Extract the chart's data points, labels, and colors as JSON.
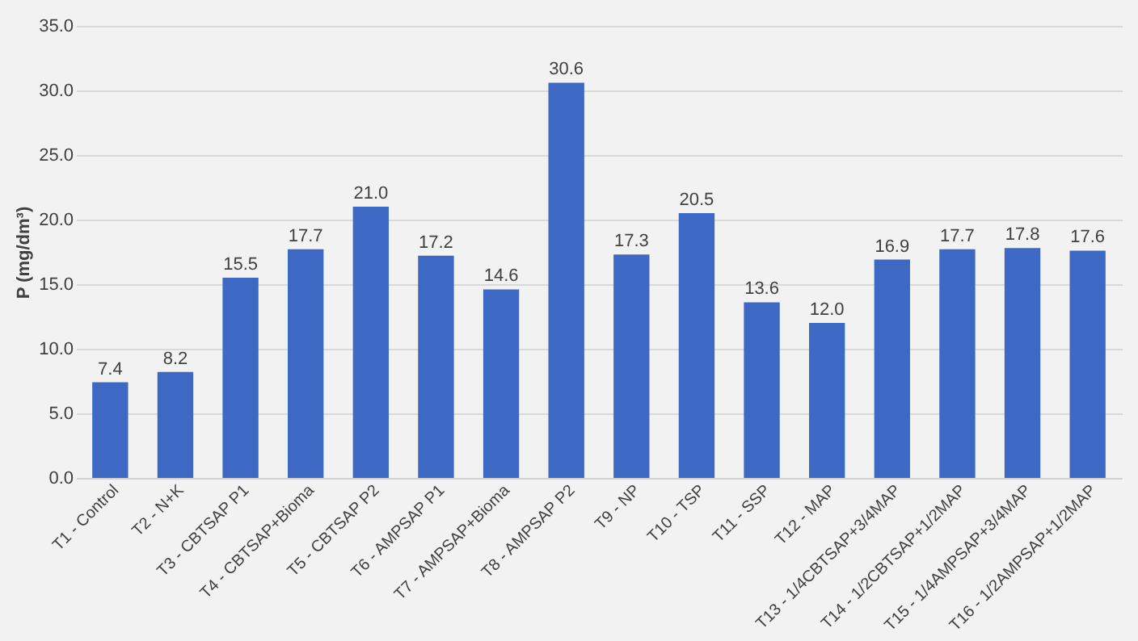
{
  "chart_data": {
    "type": "bar",
    "ylabel": "P (mg/dm³)",
    "categories": [
      "T1 - Control",
      "T2 - N+K",
      "T3 - CBTSAP P1",
      "T4 - CBTSAP+Bioma",
      "T5 - CBTSAP P2",
      "T6 - AMPSAP P1",
      "T7 - AMPSAP+Bioma",
      "T8 - AMPSAP P2",
      "T9 - NP",
      "T10 - TSP",
      "T11 - SSP",
      "T12 - MAP",
      "T13 - 1/4CBTSAP+3/4MAP",
      "T14 - 1/2CBTSAP+1/2MAP",
      "T15 - 1/4AMPSAP+3/4MAP",
      "T16 - 1/2AMPSAP+1/2MAP"
    ],
    "values": [
      7.4,
      8.2,
      15.5,
      17.7,
      21.0,
      17.2,
      14.6,
      30.6,
      17.3,
      20.5,
      13.6,
      12.0,
      16.9,
      17.7,
      17.8,
      17.6
    ],
    "color": "#3d68c4",
    "ylim": [
      0,
      35
    ],
    "yticks": [
      {
        "value": 0,
        "label": "0.0"
      },
      {
        "value": 5,
        "label": "5.0"
      },
      {
        "value": 10,
        "label": "10.0"
      },
      {
        "value": 15,
        "label": "15.0"
      },
      {
        "value": 20,
        "label": "20.0"
      },
      {
        "value": 25,
        "label": "25.0"
      },
      {
        "value": 30,
        "label": "30.0"
      },
      {
        "value": 35,
        "label": "35.0"
      }
    ],
    "value_labels": [
      "7.4",
      "8.2",
      "15.5",
      "17.7",
      "21.0",
      "17.2",
      "14.6",
      "30.6",
      "17.3",
      "20.5",
      "13.6",
      "12.0",
      "16.9",
      "17.7",
      "17.8",
      "17.6"
    ],
    "grid": "y"
  }
}
